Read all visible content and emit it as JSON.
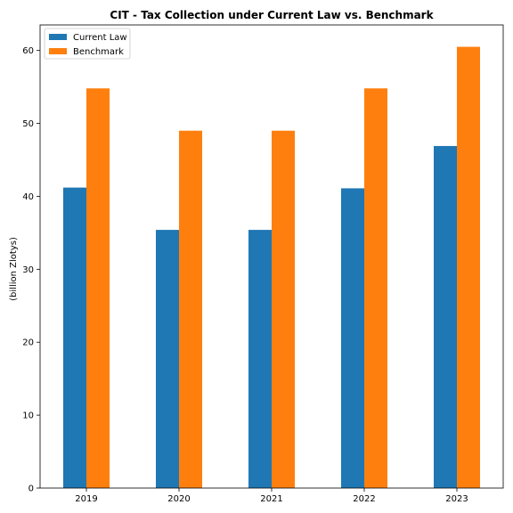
{
  "chart_data": {
    "type": "bar",
    "title": "CIT - Tax Collection under Current Law vs. Benchmark",
    "xlabel": "",
    "ylabel": "(billion Zlotys)",
    "categories": [
      "2019",
      "2020",
      "2021",
      "2022",
      "2023"
    ],
    "series": [
      {
        "name": "Current Law",
        "color": "#1f77b4",
        "values": [
          41.2,
          35.4,
          35.4,
          41.1,
          46.9
        ]
      },
      {
        "name": "Benchmark",
        "color": "#ff7f0e",
        "values": [
          54.8,
          49.0,
          49.0,
          54.8,
          60.5
        ]
      }
    ],
    "ylim": [
      0,
      63.5
    ],
    "yticks": [
      0,
      10,
      20,
      30,
      40,
      50,
      60
    ],
    "legend": "top-left",
    "grid": false
  }
}
